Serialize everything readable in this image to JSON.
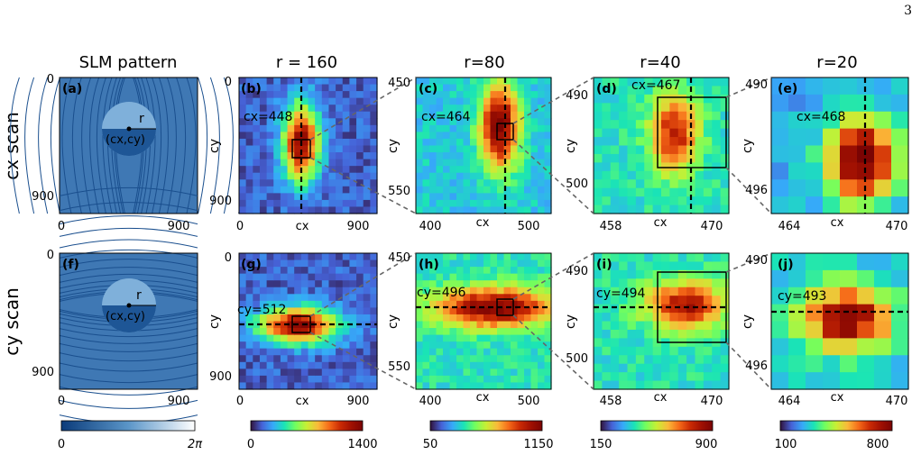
{
  "page_number": "3",
  "column_titles": [
    "SLM pattern",
    "r = 160",
    "r=80",
    "r=40",
    "r=20"
  ],
  "row_titles": [
    "cx scan",
    "cy scan"
  ],
  "panel_letters": [
    "(a)",
    "(b)",
    "(c)",
    "(d)",
    "(e)",
    "(f)",
    "(g)",
    "(h)",
    "(i)",
    "(j)"
  ],
  "slm_labels": {
    "r": "r",
    "center": "(cx,cy)"
  },
  "annotations": {
    "b": "cx=448",
    "c": "cx=464",
    "d": "cx=467",
    "e": "cx=468",
    "g": "cy=512",
    "h": "cy=496",
    "i": "cy=494",
    "j": "cy=493"
  },
  "axes": {
    "slm": {
      "xticks": [
        "0",
        "900"
      ],
      "yticks": [
        "0",
        "900"
      ]
    },
    "r160": {
      "xlabel": "cx",
      "ylabel": "cy",
      "xticks": [
        "0",
        "900"
      ],
      "yticks": [
        "0",
        "900"
      ]
    },
    "r80": {
      "xlabel": "cx",
      "ylabel": "cy",
      "xticks": [
        "400",
        "500"
      ],
      "yticks": [
        "450",
        "550"
      ]
    },
    "r40": {
      "xlabel": "cx",
      "ylabel": "cy",
      "xticks": [
        "458",
        "470"
      ],
      "yticks": [
        "490",
        "500"
      ]
    },
    "r20": {
      "xlabel": "cx",
      "ylabel": "cy",
      "xticks": [
        "464",
        "470"
      ],
      "yticks": [
        "490",
        "496"
      ]
    }
  },
  "colorbars": [
    {
      "min": "0",
      "max": "2π",
      "cmap": "blues"
    },
    {
      "min": "0",
      "max": "1400",
      "cmap": "turbo"
    },
    {
      "min": "50",
      "max": "1150",
      "cmap": "turbo"
    },
    {
      "min": "150",
      "max": "900",
      "cmap": "turbo"
    },
    {
      "min": "100",
      "max": "800",
      "cmap": "turbo"
    }
  ],
  "chart_data": [
    {
      "panel": "b",
      "type": "heatmap",
      "scan": "cx",
      "r": 160,
      "x_range": [
        0,
        1024
      ],
      "y_range": [
        0,
        1024
      ],
      "marked_cx": 448,
      "vmin": 0,
      "vmax": 1400
    },
    {
      "panel": "c",
      "type": "heatmap",
      "scan": "cx",
      "r": 80,
      "x_range": [
        380,
        510
      ],
      "y_range": [
        440,
        570
      ],
      "marked_cx": 464,
      "vmin": 50,
      "vmax": 1150
    },
    {
      "panel": "d",
      "type": "heatmap",
      "scan": "cx",
      "r": 40,
      "x_range": [
        456,
        472
      ],
      "y_range": [
        488,
        504
      ],
      "marked_cx": 467,
      "vmin": 150,
      "vmax": 900
    },
    {
      "panel": "e",
      "type": "heatmap",
      "scan": "cx",
      "r": 20,
      "x_range": [
        463,
        471
      ],
      "y_range": [
        489.5,
        497.5
      ],
      "marked_cx": 468,
      "vmin": 100,
      "vmax": 800
    },
    {
      "panel": "g",
      "type": "heatmap",
      "scan": "cy",
      "r": 160,
      "x_range": [
        0,
        1024
      ],
      "y_range": [
        0,
        1024
      ],
      "marked_cy": 512,
      "vmin": 0,
      "vmax": 1400
    },
    {
      "panel": "h",
      "type": "heatmap",
      "scan": "cy",
      "r": 80,
      "x_range": [
        380,
        510
      ],
      "y_range": [
        440,
        570
      ],
      "marked_cy": 496,
      "vmin": 50,
      "vmax": 1150
    },
    {
      "panel": "i",
      "type": "heatmap",
      "scan": "cy",
      "r": 40,
      "x_range": [
        456,
        472
      ],
      "y_range": [
        488,
        504
      ],
      "marked_cy": 494,
      "vmin": 150,
      "vmax": 900
    },
    {
      "panel": "j",
      "type": "heatmap",
      "scan": "cy",
      "r": 20,
      "x_range": [
        463,
        471
      ],
      "y_range": [
        489.5,
        497.5
      ],
      "marked_cy": 493,
      "vmin": 100,
      "vmax": 800
    }
  ]
}
